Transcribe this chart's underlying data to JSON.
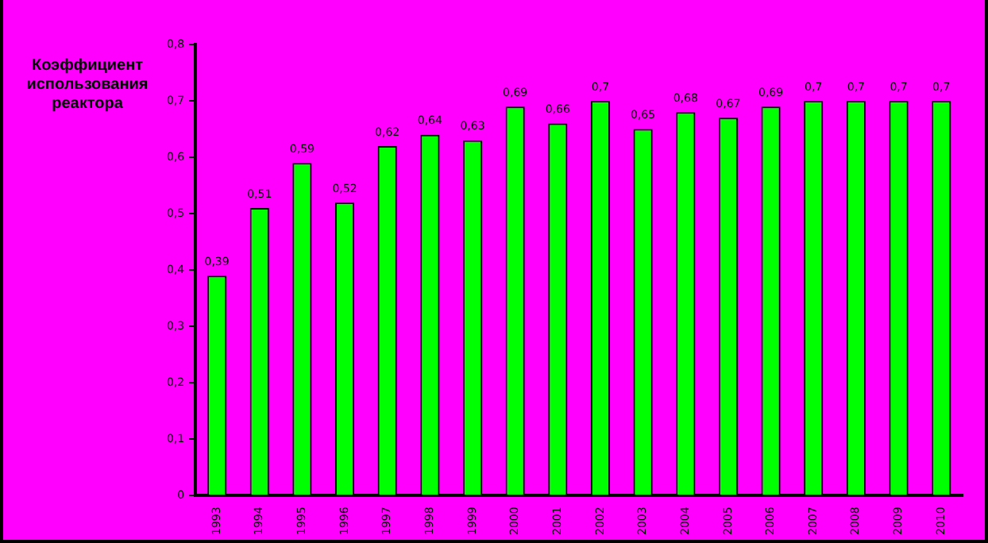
{
  "chart_data": {
    "type": "bar",
    "ylabel": "Коэффициент использования реактора",
    "categories": [
      "1993",
      "1994",
      "1995",
      "1996",
      "1997",
      "1998",
      "1999",
      "2000",
      "2001",
      "2002",
      "2003",
      "2004",
      "2005",
      "2006",
      "2007",
      "2008",
      "2009",
      "2010"
    ],
    "values": [
      0.39,
      0.51,
      0.59,
      0.52,
      0.62,
      0.64,
      0.63,
      0.69,
      0.66,
      0.7,
      0.65,
      0.68,
      0.67,
      0.69,
      0.7,
      0.7,
      0.7,
      0.7
    ],
    "value_labels": [
      "0,39",
      "0,51",
      "0,59",
      "0,52",
      "0,62",
      "0,64",
      "0,63",
      "0,69",
      "0,66",
      "0,7",
      "0,65",
      "0,68",
      "0,67",
      "0,69",
      "0,7",
      "0,7",
      "0,7",
      "0,7"
    ],
    "color": "#00ff00",
    "ylim": [
      0,
      0.8
    ],
    "yticks": [
      0,
      {
        "value": 0.1,
        "label": "0,1"
      },
      {
        "value": 0.2,
        "label": "0,2"
      },
      {
        "value": 0.3,
        "label": "0,3"
      },
      {
        "value": 0.4,
        "label": "0,4"
      },
      {
        "value": 0.5,
        "label": "0,5"
      },
      {
        "value": 0.6,
        "label": "0,6"
      },
      {
        "value": 0.7,
        "label": "0,7"
      },
      {
        "value": 0.8,
        "label": "0,8"
      }
    ],
    "grid": false,
    "legend": false
  }
}
